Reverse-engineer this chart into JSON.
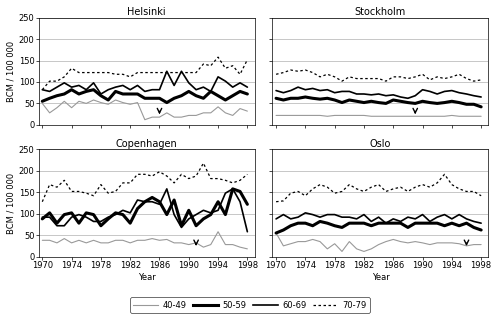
{
  "years": [
    1970,
    1971,
    1972,
    1973,
    1974,
    1975,
    1976,
    1977,
    1978,
    1979,
    1980,
    1981,
    1982,
    1983,
    1984,
    1985,
    1986,
    1987,
    1988,
    1989,
    1990,
    1991,
    1992,
    1993,
    1994,
    1995,
    1996,
    1997,
    1998
  ],
  "helsinki": {
    "age40_49": [
      50,
      28,
      40,
      55,
      40,
      55,
      50,
      58,
      52,
      48,
      58,
      52,
      48,
      52,
      12,
      18,
      18,
      28,
      18,
      18,
      22,
      22,
      28,
      28,
      42,
      28,
      22,
      38,
      32
    ],
    "age50_59": [
      55,
      62,
      68,
      72,
      82,
      72,
      78,
      82,
      68,
      58,
      78,
      72,
      72,
      72,
      62,
      62,
      62,
      52,
      62,
      68,
      78,
      68,
      62,
      78,
      68,
      58,
      68,
      78,
      72
    ],
    "age60_69": [
      82,
      78,
      88,
      98,
      88,
      92,
      82,
      98,
      72,
      82,
      88,
      92,
      82,
      92,
      78,
      82,
      82,
      125,
      92,
      125,
      98,
      82,
      88,
      78,
      112,
      102,
      88,
      98,
      88
    ],
    "age70_79": [
      82,
      102,
      102,
      112,
      132,
      122,
      122,
      122,
      122,
      122,
      118,
      118,
      112,
      122,
      122,
      122,
      122,
      122,
      122,
      122,
      122,
      122,
      142,
      138,
      158,
      132,
      138,
      118,
      152
    ],
    "arrow_year": 1986
  },
  "stockholm": {
    "age40_49": [
      22,
      22,
      22,
      22,
      22,
      22,
      22,
      20,
      22,
      22,
      22,
      22,
      22,
      20,
      20,
      20,
      20,
      20,
      20,
      20,
      20,
      20,
      20,
      20,
      22,
      20,
      20,
      20,
      20
    ],
    "age50_59": [
      62,
      58,
      62,
      62,
      65,
      62,
      60,
      62,
      58,
      52,
      58,
      55,
      52,
      55,
      52,
      50,
      58,
      55,
      52,
      50,
      55,
      52,
      50,
      52,
      55,
      52,
      48,
      48,
      42
    ],
    "age60_69": [
      80,
      75,
      80,
      88,
      82,
      85,
      80,
      82,
      75,
      78,
      78,
      72,
      72,
      70,
      72,
      68,
      70,
      65,
      62,
      68,
      82,
      78,
      72,
      78,
      80,
      75,
      72,
      68,
      65
    ],
    "age70_79": [
      118,
      122,
      128,
      125,
      128,
      122,
      112,
      118,
      112,
      102,
      112,
      108,
      108,
      108,
      108,
      102,
      112,
      112,
      108,
      112,
      118,
      105,
      112,
      108,
      112,
      118,
      108,
      102,
      105
    ],
    "arrow_year": 1989
  },
  "copenhagen": {
    "age40_49": [
      38,
      38,
      32,
      42,
      32,
      38,
      32,
      38,
      32,
      32,
      38,
      38,
      32,
      38,
      38,
      42,
      38,
      40,
      32,
      32,
      28,
      32,
      22,
      28,
      58,
      28,
      28,
      22,
      18
    ],
    "age50_59": [
      88,
      102,
      78,
      98,
      102,
      78,
      102,
      98,
      72,
      88,
      102,
      98,
      78,
      112,
      128,
      138,
      128,
      98,
      132,
      72,
      108,
      72,
      88,
      98,
      128,
      98,
      158,
      152,
      122
    ],
    "age60_69": [
      92,
      92,
      72,
      72,
      92,
      98,
      92,
      82,
      82,
      92,
      98,
      108,
      102,
      132,
      128,
      128,
      122,
      158,
      98,
      68,
      88,
      98,
      108,
      102,
      108,
      148,
      158,
      128,
      58
    ],
    "age70_79": [
      128,
      168,
      162,
      178,
      152,
      152,
      148,
      142,
      168,
      148,
      152,
      172,
      172,
      192,
      192,
      188,
      198,
      188,
      172,
      192,
      182,
      188,
      218,
      182,
      182,
      178,
      172,
      178,
      192
    ],
    "arrow_year": 1991
  },
  "oslo": {
    "age40_49": [
      55,
      25,
      30,
      35,
      35,
      40,
      35,
      18,
      30,
      12,
      35,
      18,
      12,
      18,
      28,
      35,
      40,
      35,
      32,
      35,
      32,
      28,
      32,
      32,
      32,
      30,
      25,
      28,
      28
    ],
    "age50_59": [
      55,
      62,
      72,
      78,
      78,
      72,
      82,
      78,
      72,
      68,
      78,
      78,
      78,
      72,
      78,
      78,
      78,
      78,
      68,
      78,
      78,
      78,
      78,
      72,
      78,
      72,
      78,
      68,
      62
    ],
    "age60_69": [
      88,
      98,
      88,
      92,
      102,
      98,
      92,
      98,
      98,
      92,
      92,
      88,
      98,
      82,
      92,
      78,
      88,
      82,
      92,
      88,
      98,
      82,
      92,
      98,
      88,
      98,
      88,
      82,
      78
    ],
    "age70_79": [
      128,
      130,
      148,
      152,
      142,
      158,
      168,
      162,
      148,
      152,
      168,
      158,
      152,
      162,
      168,
      152,
      158,
      162,
      152,
      162,
      168,
      162,
      172,
      192,
      168,
      158,
      152,
      152,
      142
    ],
    "arrow_year": 1996
  },
  "ylim": [
    0,
    250
  ],
  "yticks": [
    0,
    50,
    100,
    150,
    200,
    250
  ],
  "xticks": [
    1970,
    1974,
    1978,
    1982,
    1986,
    1990,
    1994,
    1998
  ],
  "legend_labels": [
    "40-49",
    "50-59",
    "60-69",
    "70-79"
  ],
  "ylabel": "BCM / 100 000",
  "xlabel": "Year",
  "background": "#ffffff"
}
